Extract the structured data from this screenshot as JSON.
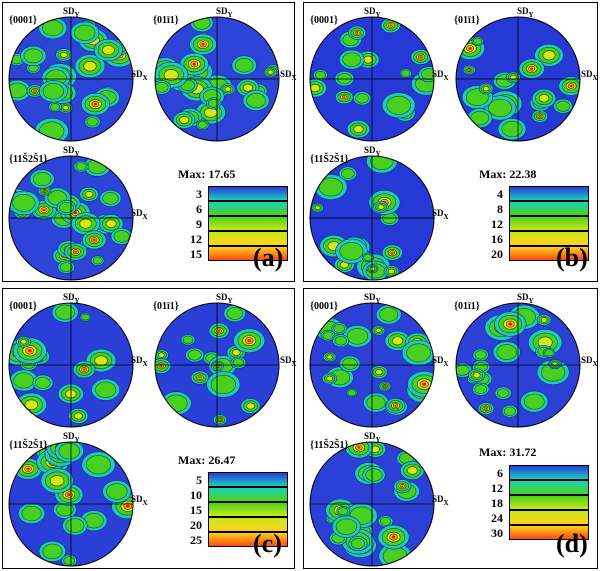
{
  "figure": {
    "panels": [
      {
        "id": "a",
        "tag": "(a)",
        "max_label": "Max: 17.65",
        "legend_levels": [
          "3",
          "6",
          "9",
          "12",
          "15"
        ],
        "pole_figures": [
          {
            "pole": "{0001}",
            "sd_x": "SD",
            "sd_y": "SD",
            "sub_x": "X",
            "sub_y": "Y"
          },
          {
            "pole": "{01ī1}",
            "sd_x": "SD",
            "sd_y": "SD",
            "sub_x": "X",
            "sub_y": "Y"
          },
          {
            "pole": "{11Š2Š1}",
            "sd_x": "SD",
            "sd_y": "SD",
            "sub_x": "X",
            "sub_y": "Y"
          }
        ]
      },
      {
        "id": "b",
        "tag": "(b)",
        "max_label": "Max: 22.38",
        "legend_levels": [
          "4",
          "8",
          "12",
          "16",
          "20"
        ],
        "pole_figures": [
          {
            "pole": "{0001}",
            "sd_x": "SD",
            "sd_y": "SD",
            "sub_x": "X",
            "sub_y": "Y"
          },
          {
            "pole": "{01ī1}",
            "sd_x": "SD",
            "sd_y": "SD",
            "sub_x": "X",
            "sub_y": "Y"
          },
          {
            "pole": "{11Š2Š1}",
            "sd_x": "SD",
            "sd_y": "SD",
            "sub_x": "X",
            "sub_y": "Y"
          }
        ]
      },
      {
        "id": "c",
        "tag": "(c)",
        "max_label": "Max: 26.47",
        "legend_levels": [
          "5",
          "10",
          "15",
          "20",
          "25"
        ],
        "pole_figures": [
          {
            "pole": "{0001}",
            "sd_x": "SD",
            "sd_y": "SD",
            "sub_x": "X",
            "sub_y": "Y"
          },
          {
            "pole": "{01ī1}",
            "sd_x": "SD",
            "sd_y": "SD",
            "sub_x": "X",
            "sub_y": "Y"
          },
          {
            "pole": "{11Š2Š1}",
            "sd_x": "SD",
            "sd_y": "SD",
            "sub_x": "X",
            "sub_y": "Y"
          }
        ]
      },
      {
        "id": "d",
        "tag": "(d)",
        "max_label": "Max: 31.72",
        "legend_levels": [
          "6",
          "12",
          "18",
          "24",
          "30"
        ],
        "pole_figures": [
          {
            "pole": "{0001}",
            "sd_x": "SD",
            "sd_y": "SD",
            "sub_x": "X",
            "sub_y": "Y"
          },
          {
            "pole": "{01ī1}",
            "sd_x": "SD",
            "sd_y": "SD",
            "sub_x": "X",
            "sub_y": "Y"
          },
          {
            "pole": "{11Š2Š1}",
            "sd_x": "SD",
            "sd_y": "SD",
            "sub_x": "X",
            "sub_y": "Y"
          }
        ]
      }
    ],
    "legend_colors": [
      "#2a3cd8",
      "#16d2c0",
      "#4cd21c",
      "#c8e81a",
      "#ffd21a",
      "#ff4a10"
    ]
  }
}
